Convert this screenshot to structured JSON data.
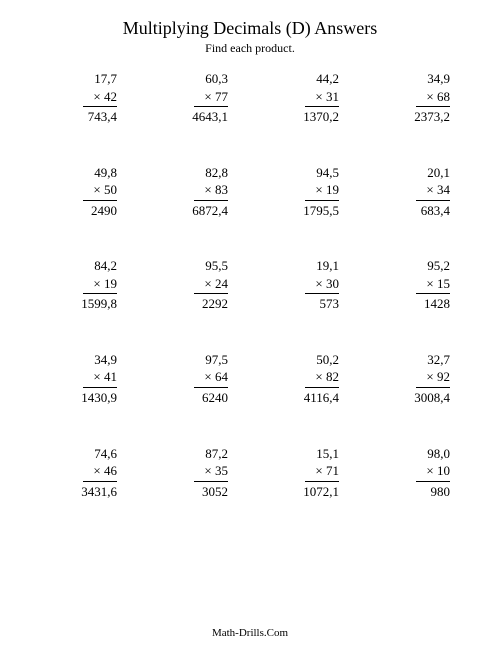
{
  "title": "Multiplying Decimals (D) Answers",
  "subtitle": "Find each product.",
  "footer": "Math-Drills.Com",
  "mult_sign": "×",
  "problems": [
    {
      "top": "17,7",
      "mult": "42",
      "ans": "743,4"
    },
    {
      "top": "60,3",
      "mult": "77",
      "ans": "4643,1"
    },
    {
      "top": "44,2",
      "mult": "31",
      "ans": "1370,2"
    },
    {
      "top": "34,9",
      "mult": "68",
      "ans": "2373,2"
    },
    {
      "top": "49,8",
      "mult": "50",
      "ans": "2490"
    },
    {
      "top": "82,8",
      "mult": "83",
      "ans": "6872,4"
    },
    {
      "top": "94,5",
      "mult": "19",
      "ans": "1795,5"
    },
    {
      "top": "20,1",
      "mult": "34",
      "ans": "683,4"
    },
    {
      "top": "84,2",
      "mult": "19",
      "ans": "1599,8"
    },
    {
      "top": "95,5",
      "mult": "24",
      "ans": "2292"
    },
    {
      "top": "19,1",
      "mult": "30",
      "ans": "573"
    },
    {
      "top": "95,2",
      "mult": "15",
      "ans": "1428"
    },
    {
      "top": "34,9",
      "mult": "41",
      "ans": "1430,9"
    },
    {
      "top": "97,5",
      "mult": "64",
      "ans": "6240"
    },
    {
      "top": "50,2",
      "mult": "82",
      "ans": "4116,4"
    },
    {
      "top": "32,7",
      "mult": "92",
      "ans": "3008,4"
    },
    {
      "top": "74,6",
      "mult": "46",
      "ans": "3431,6"
    },
    {
      "top": "87,2",
      "mult": "35",
      "ans": "3052"
    },
    {
      "top": "15,1",
      "mult": "71",
      "ans": "1072,1"
    },
    {
      "top": "98,0",
      "mult": "10",
      "ans": "980"
    }
  ]
}
